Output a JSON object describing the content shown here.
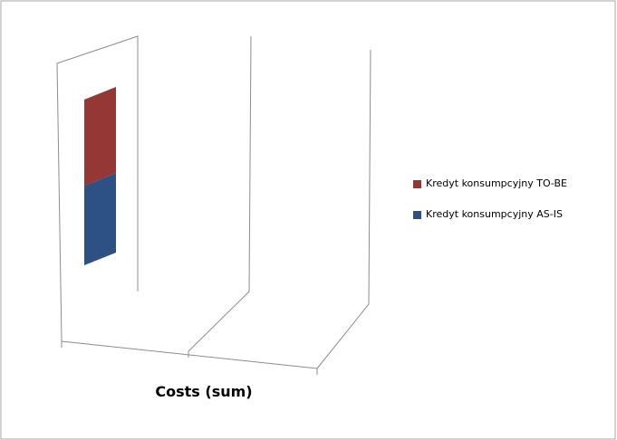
{
  "chart_data": {
    "type": "bar",
    "categories": [
      "Costs (sum)"
    ],
    "xlabel": "Costs (sum)",
    "stacked": true,
    "three_d": true,
    "gridlines": true,
    "legend_position": "right",
    "series": [
      {
        "name": "Kredyt konsumpcyjny AS-IS",
        "color": "#2e5184",
        "values": [
          48
        ]
      },
      {
        "name": "Kredyt konsumpcyjny TO-BE",
        "color": "#953735",
        "values": [
          52
        ]
      }
    ],
    "legend": [
      {
        "label": "Kredyt konsumpcyjny TO-BE",
        "color": "#953735"
      },
      {
        "label": "Kredyt konsumpcyjny AS-IS",
        "color": "#2e5184"
      }
    ]
  }
}
